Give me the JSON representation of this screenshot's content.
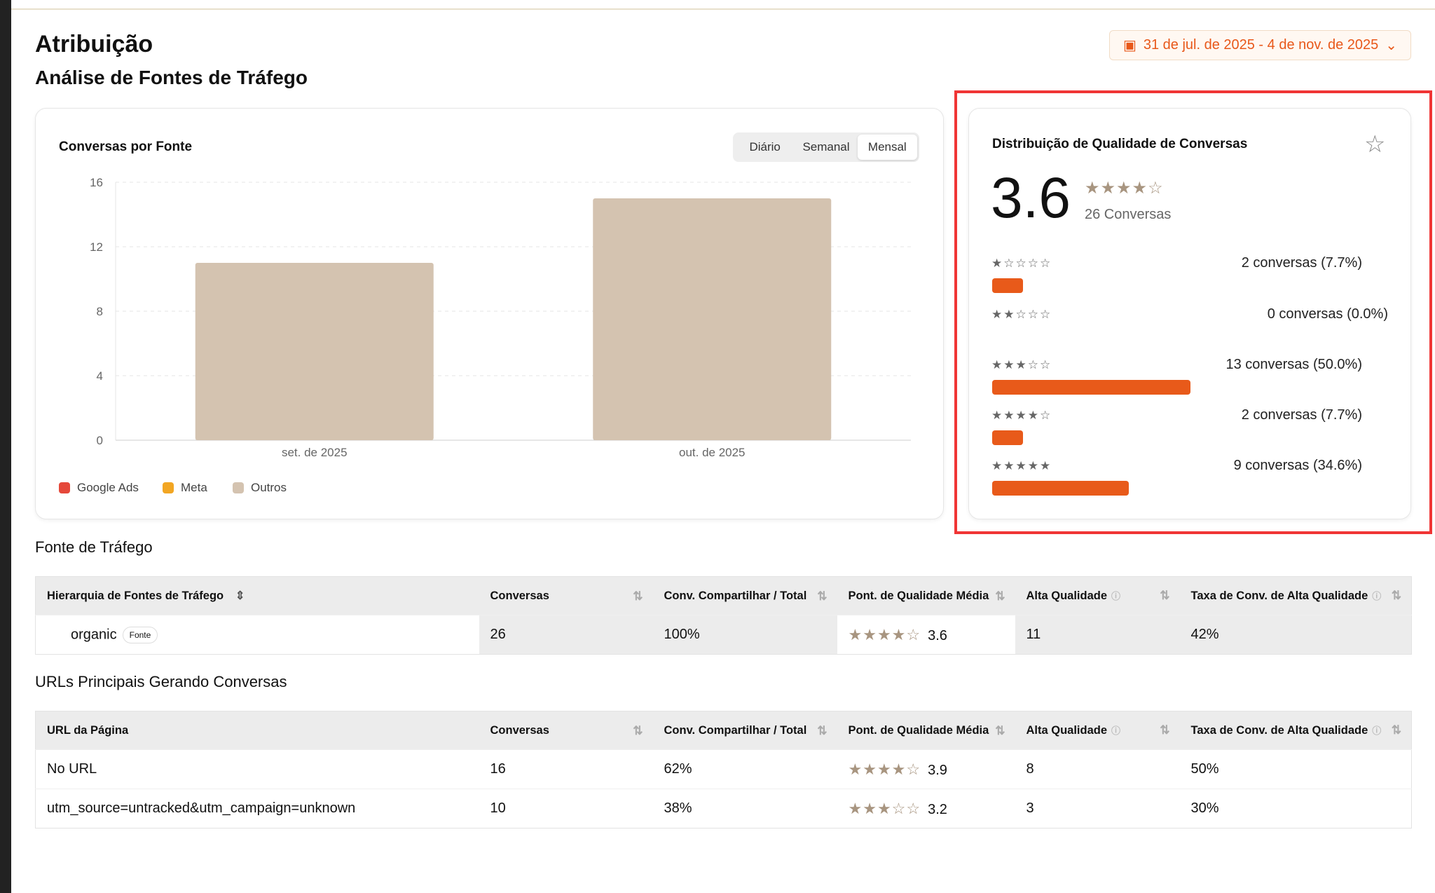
{
  "page": {
    "title": "Atribuição",
    "subtitle": "Análise de Fontes de Tráfego",
    "date_range": "31 de jul. de 2025 - 4 de nov. de 2025",
    "accent": "#e8581a"
  },
  "chart_data": {
    "type": "bar",
    "title": "Conversas por Fonte",
    "categories": [
      "set. de 2025",
      "out. de 2025"
    ],
    "series": [
      {
        "name": "Google Ads",
        "color": "#e5483a",
        "values": [
          0,
          0
        ]
      },
      {
        "name": "Meta",
        "color": "#f2a623",
        "values": [
          0,
          0
        ]
      },
      {
        "name": "Outros",
        "color": "#d4c3b0",
        "values": [
          11,
          15
        ]
      }
    ],
    "ylim": [
      0,
      16
    ],
    "yticks": [
      0,
      4,
      8,
      12,
      16
    ],
    "grid": true,
    "legend": "bottom-left",
    "stacked": true
  },
  "toggle": {
    "options": [
      "Diário",
      "Semanal",
      "Mensal"
    ],
    "selected": "Mensal"
  },
  "quality": {
    "title": "Distribuição de Qualidade de Conversas",
    "average": "3.6",
    "average_value": 3.6,
    "total_label": "26 Conversas",
    "rows": [
      {
        "stars": 1,
        "label": "2 conversas (7.7%)",
        "pct": 7.7
      },
      {
        "stars": 2,
        "label": "0 conversas (0.0%)",
        "pct": 0
      },
      {
        "stars": 3,
        "label": "13 conversas (50.0%)",
        "pct": 50
      },
      {
        "stars": 4,
        "label": "2 conversas (7.7%)",
        "pct": 7.7
      },
      {
        "stars": 5,
        "label": "9 conversas (34.6%)",
        "pct": 34.6
      }
    ],
    "bar_color": "#e85a1a"
  },
  "traffic": {
    "title": "Fonte de Tráfego",
    "headers": [
      "Hierarquia de Fontes de Tráfego",
      "Conversas",
      "Conv. Compartilhar / Total",
      "Pont. de Qualidade Média",
      "Alta Qualidade",
      "Taxa de Conv. de Alta Qualidade"
    ],
    "rows": [
      {
        "source": "organic",
        "badge": "Fonte",
        "conversas": "26",
        "share": "100%",
        "score": "3.6",
        "stars": 4,
        "alta": "11",
        "taxa": "42%"
      }
    ]
  },
  "urls": {
    "title": "URLs Principais Gerando Conversas",
    "headers": [
      "URL da Página",
      "Conversas",
      "Conv. Compartilhar / Total",
      "Pont. de Qualidade Média",
      "Alta Qualidade",
      "Taxa de Conv. de Alta Qualidade"
    ],
    "rows": [
      {
        "url": "No URL",
        "conversas": "16",
        "share": "62%",
        "score": "3.9",
        "stars": 4,
        "alta": "8",
        "taxa": "50%"
      },
      {
        "url": "utm_source=untracked&utm_campaign=unknown",
        "conversas": "10",
        "share": "38%",
        "score": "3.2",
        "stars": 3,
        "alta": "3",
        "taxa": "30%"
      }
    ]
  }
}
